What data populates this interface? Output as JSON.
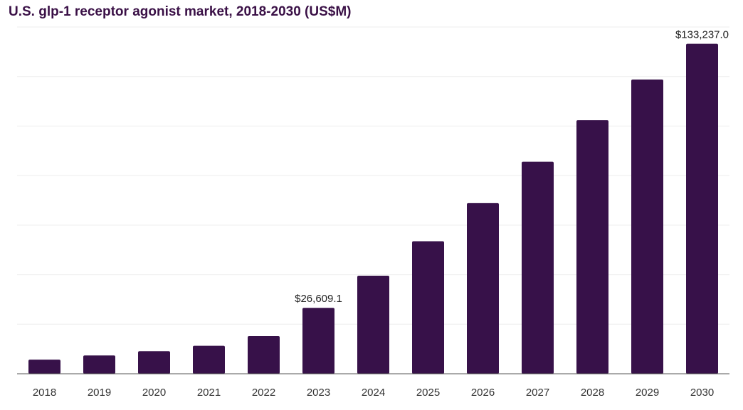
{
  "chart_data": {
    "type": "bar",
    "title": "U.S. glp-1 receptor agonist market, 2018-2030 (US$M)",
    "categories": [
      "2018",
      "2019",
      "2020",
      "2021",
      "2022",
      "2023",
      "2024",
      "2025",
      "2026",
      "2027",
      "2028",
      "2029",
      "2030"
    ],
    "values": [
      5700,
      7400,
      9100,
      11300,
      15200,
      26609.1,
      39600,
      53500,
      68900,
      85600,
      102400,
      118800,
      133237.0
    ],
    "data_labels": [
      {
        "category": "2023",
        "text": "$26,609.1"
      },
      {
        "category": "2030",
        "text": "$133,237.0"
      }
    ],
    "ylim": [
      0,
      140000
    ],
    "grid": true,
    "y_axis_labels_shown": false,
    "colors": {
      "bar": "#371149",
      "title": "#3a1046",
      "grid": "#eeeeee",
      "axis": "#555555"
    }
  }
}
